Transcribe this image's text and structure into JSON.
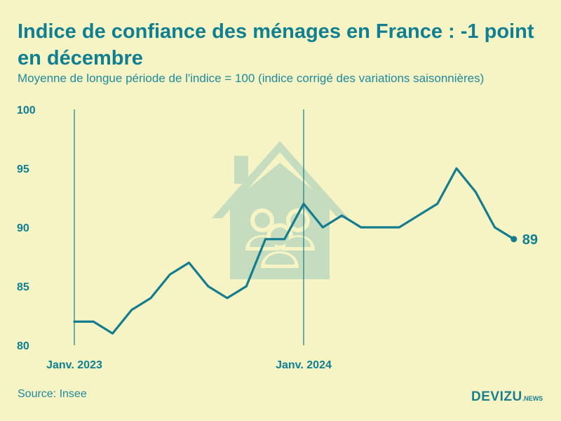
{
  "header": {
    "title": "Indice de confiance des ménages en France : -1 point en décembre",
    "subtitle": "Moyenne de longue période de l'indice = 100 (indice corrigé des variations saisonnières)"
  },
  "footer": {
    "source": "Source: Insee",
    "brand_main": "DEVIZU",
    "brand_suffix": ".NEWS"
  },
  "colors": {
    "background": "#f6f4c4",
    "line": "#137c8e",
    "text": "#0f7f91",
    "watermark": "#c6dcbf"
  },
  "icons": {
    "watermark": "house-people-icon"
  },
  "chart_data": {
    "type": "line",
    "x": [
      "2023-01",
      "2023-02",
      "2023-03",
      "2023-04",
      "2023-05",
      "2023-06",
      "2023-07",
      "2023-08",
      "2023-09",
      "2023-10",
      "2023-11",
      "2023-12",
      "2024-01",
      "2024-02",
      "2024-03",
      "2024-04",
      "2024-05",
      "2024-06",
      "2024-07",
      "2024-08",
      "2024-09",
      "2024-10",
      "2024-11",
      "2024-12"
    ],
    "series": [
      {
        "values": [
          82,
          82,
          81,
          83,
          84,
          86,
          87,
          85,
          84,
          85,
          89,
          89,
          92,
          90,
          91,
          90,
          90,
          90,
          91,
          92,
          95,
          93,
          90,
          89
        ]
      }
    ],
    "ylim": [
      80,
      100
    ],
    "yticks": [
      "80",
      "85",
      "90",
      "95",
      "100"
    ],
    "xticks": [
      {
        "x": "2023-01",
        "label": "Janv. 2023"
      },
      {
        "x": "2024-01",
        "label": "Janv. 2024"
      }
    ],
    "last_label": "89",
    "grid": false
  }
}
